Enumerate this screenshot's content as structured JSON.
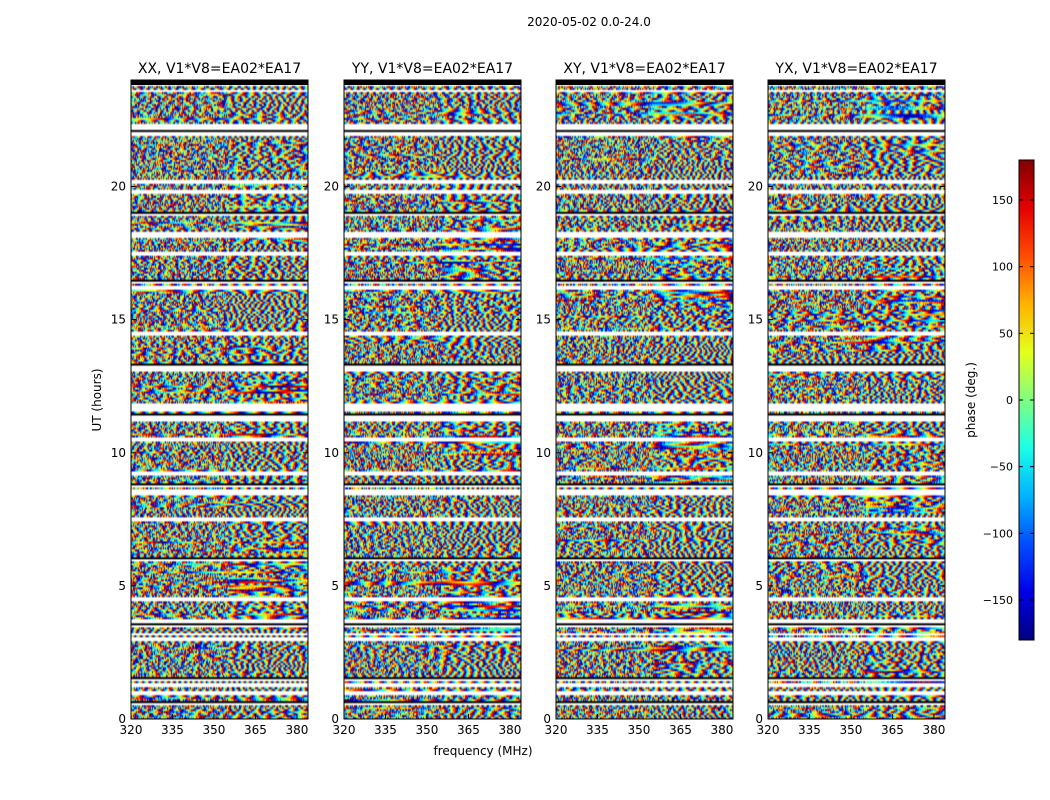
{
  "figure": {
    "suptitle": "2020-05-02 0.0-24.0"
  },
  "chart_data": {
    "type": "heatmap",
    "title": "2020-05-02 0.0-24.0",
    "xlabel": "frequency (MHz)",
    "ylabel": "UT (hours)",
    "xlim": [
      320,
      384
    ],
    "ylim": [
      0,
      24
    ],
    "x_ticks": [
      320,
      335,
      350,
      365,
      380
    ],
    "y_ticks": [
      0,
      5,
      10,
      15,
      20
    ],
    "panels": [
      {
        "title": "XX, V1*V8=EA02*EA17"
      },
      {
        "title": "YY, V1*V8=EA02*EA17"
      },
      {
        "title": "XY, V1*V8=EA02*EA17"
      },
      {
        "title": "YX, V1*V8=EA02*EA17"
      }
    ],
    "colorbar": {
      "label": "phase (deg.)",
      "range": [
        -180,
        180
      ],
      "ticks": [
        -150,
        -100,
        -50,
        0,
        50,
        100,
        150
      ],
      "colormap": "jet"
    },
    "flagged_rows_hours": [
      [
        0.55,
        0.62
      ],
      [
        0.95,
        1.02
      ],
      [
        1.25,
        1.32
      ],
      [
        1.45,
        1.52
      ],
      [
        2.95,
        3.02
      ],
      [
        3.15,
        3.22
      ],
      [
        3.45,
        3.55
      ],
      [
        3.65,
        3.72
      ],
      [
        4.45,
        4.52
      ],
      [
        5.95,
        6.02
      ],
      [
        7.45,
        7.52
      ],
      [
        8.45,
        8.55
      ],
      [
        8.75,
        8.85
      ],
      [
        9.15,
        9.25
      ],
      [
        10.45,
        10.55
      ],
      [
        11.2,
        11.45
      ],
      [
        11.55,
        11.8
      ],
      [
        13.05,
        13.15
      ],
      [
        13.25,
        13.32
      ],
      [
        14.45,
        14.52
      ],
      [
        16.15,
        16.25
      ],
      [
        16.35,
        16.45
      ],
      [
        17.45,
        17.52
      ],
      [
        18.15,
        18.25
      ],
      [
        18.95,
        19.02
      ],
      [
        19.75,
        19.85
      ],
      [
        20.15,
        20.25
      ],
      [
        21.95,
        22.05
      ],
      [
        22.2,
        22.3
      ],
      [
        23.55,
        23.62
      ],
      [
        23.8,
        24.0
      ]
    ]
  }
}
